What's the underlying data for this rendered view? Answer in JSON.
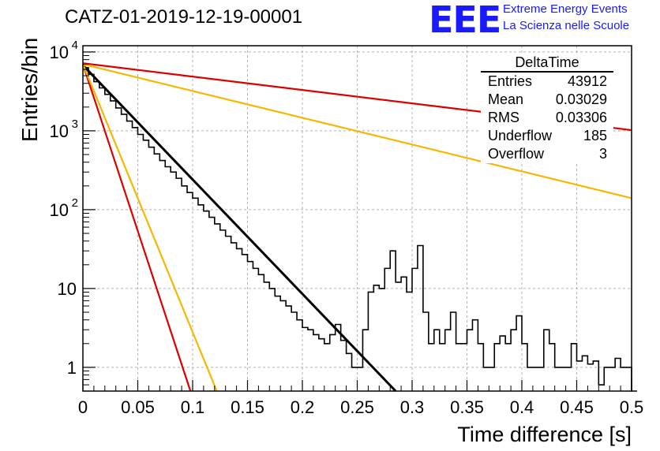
{
  "header": {
    "title": "CATZ-01-2019-12-19-00001",
    "logo_text": "EEE",
    "logo_line1": "Extreme Energy Events",
    "logo_line2": "La Scienza nelle Scuole"
  },
  "stats_box": {
    "title": "DeltaTime",
    "rows": [
      {
        "label": "Entries",
        "value": "43912"
      },
      {
        "label": "Mean",
        "value": "0.03029"
      },
      {
        "label": "RMS",
        "value": "0.03306"
      },
      {
        "label": "Underflow",
        "value": "185"
      },
      {
        "label": "Overflow",
        "value": "3"
      }
    ]
  },
  "chart_data": {
    "type": "histogram",
    "title": "CATZ-01-2019-12-19-00001",
    "xlabel": "Time difference [s]",
    "ylabel": "Entries/bin",
    "xlim": [
      0,
      0.5
    ],
    "ylim": [
      0.5,
      12000
    ],
    "y_scale": "log",
    "grid": true,
    "x_ticks": [
      "0",
      "0.05",
      "0.1",
      "0.15",
      "0.2",
      "0.25",
      "0.3",
      "0.35",
      "0.4",
      "0.45",
      "0.5"
    ],
    "y_ticks": [
      {
        "value": 1,
        "label": "1"
      },
      {
        "value": 10,
        "label": "10"
      },
      {
        "value": 100,
        "label": "10",
        "exp": "2"
      },
      {
        "value": 1000,
        "label": "10",
        "exp": "3"
      },
      {
        "value": 10000,
        "label": "10",
        "exp": "4"
      }
    ],
    "bin_width": 0.005,
    "histogram_values": [
      6300,
      5200,
      4200,
      3500,
      2900,
      2400,
      1950,
      1620,
      1330,
      1100,
      900,
      760,
      620,
      510,
      420,
      350,
      300,
      250,
      200,
      165,
      140,
      115,
      96,
      80,
      66,
      55,
      46,
      38,
      32,
      27,
      22,
      18,
      15,
      12,
      10,
      8,
      7,
      6,
      5,
      4,
      3.2,
      3,
      2.6,
      2.3,
      2,
      2.6,
      3.5,
      2.2,
      1.5,
      1,
      1,
      3,
      9,
      11,
      10,
      18,
      30,
      12,
      14,
      9,
      18,
      35,
      5,
      2,
      3,
      2,
      3,
      5,
      2,
      2,
      3,
      4,
      2,
      1,
      1,
      2,
      2.5,
      2,
      3,
      4.5,
      2,
      1,
      1,
      1,
      3,
      2,
      1,
      1,
      1,
      2,
      1.2,
      1.4,
      1.1,
      1.2,
      0.6,
      1,
      1,
      1.3,
      1,
      1,
      0.3
    ],
    "fits": [
      {
        "color": "#000000",
        "x": [
          0,
          0.285
        ],
        "y": [
          6800,
          0.5
        ]
      },
      {
        "color": "#dd0000",
        "x": [
          0,
          0.098
        ],
        "y": [
          7000,
          0.5
        ]
      },
      {
        "color": "#f5b800",
        "x": [
          0,
          0.122
        ],
        "y": [
          7000,
          0.5
        ]
      },
      {
        "color": "#dd0000",
        "x": [
          0,
          0.5
        ],
        "y": [
          7200,
          1020
        ]
      },
      {
        "color": "#f5b800",
        "x": [
          0,
          0.5
        ],
        "y": [
          7000,
          140
        ]
      }
    ]
  }
}
